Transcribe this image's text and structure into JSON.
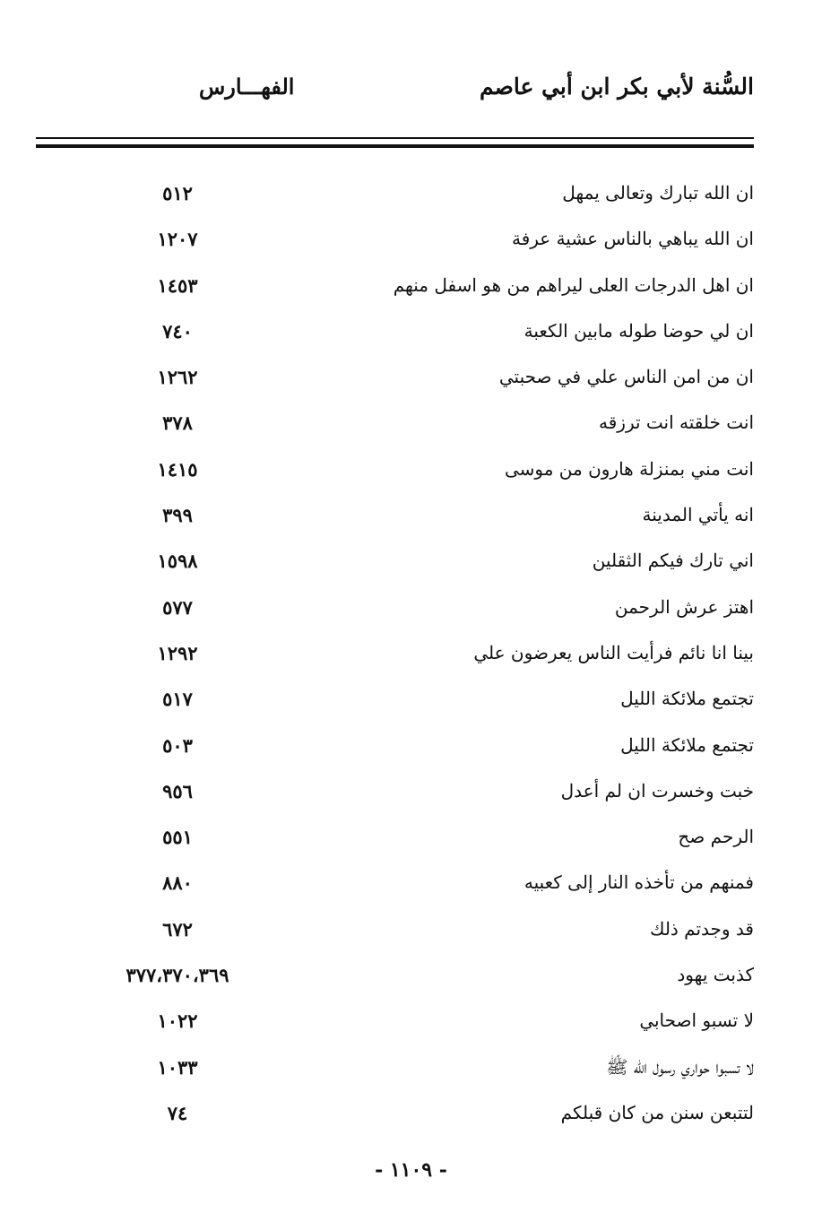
{
  "header": {
    "book_title": "السُّنة لأبي بكر ابن أبي عاصم",
    "section": "الفهـــارس"
  },
  "entries": [
    {
      "text": "ان الله تبارك وتعالى يمهل",
      "ref": "٥١٢"
    },
    {
      "text": "ان الله يباهي بالناس عشية عرفة",
      "ref": "١٢٠٧"
    },
    {
      "text": "ان اهل الدرجات العلى ليراهم من هو اسفل منهم",
      "ref": "١٤٥٣"
    },
    {
      "text": "ان لي حوضا طوله مابين الكعبة",
      "ref": "٧٤٠"
    },
    {
      "text": "ان من امن الناس علي في صحبتي",
      "ref": "١٢٦٢"
    },
    {
      "text": "انت خلقته انت ترزقه",
      "ref": "٣٧٨"
    },
    {
      "text": "انت مني بمنزلة هارون من موسى",
      "ref": "١٤١٥"
    },
    {
      "text": "انه يأتي المدينة",
      "ref": "٣٩٩"
    },
    {
      "text": "اني تارك فيكم الثقلين",
      "ref": "١٥٩٨"
    },
    {
      "text": "اهتز عرش الرحمن",
      "ref": "٥٧٧"
    },
    {
      "text": "بينا انا نائم فرأيت الناس يعرضون علي",
      "ref": "١٢٩٢"
    },
    {
      "text": "تجتمع ملائكة الليل",
      "ref": "٥١٧"
    },
    {
      "text": "تجتمع ملائكة الليل",
      "ref": "٥٠٣"
    },
    {
      "text": "خبت وخسرت ان لم أعدل",
      "ref": "٩٥٦"
    },
    {
      "text": "الرحم صح",
      "ref": "٥٥١"
    },
    {
      "text": "فمنهم من تأخذه النار إلى كعبيه",
      "ref": "٨٨٠"
    },
    {
      "text": "قد وجدتم ذلك",
      "ref": "٦٧٢"
    },
    {
      "text": "كذبت يهود",
      "ref": "٣٧٧،٣٧٠،٣٦٩"
    },
    {
      "text": "لا تسبو اصحابي",
      "ref": "١٠٢٢"
    },
    {
      "text": "لا تسبوا حواري رسول الله ﷺ",
      "ref": "١٠٣٣"
    },
    {
      "text": "لتتبعن سنن من كان قبلكم",
      "ref": "٧٤"
    }
  ],
  "footer": {
    "page_number": "- ١١٠٩ -"
  }
}
